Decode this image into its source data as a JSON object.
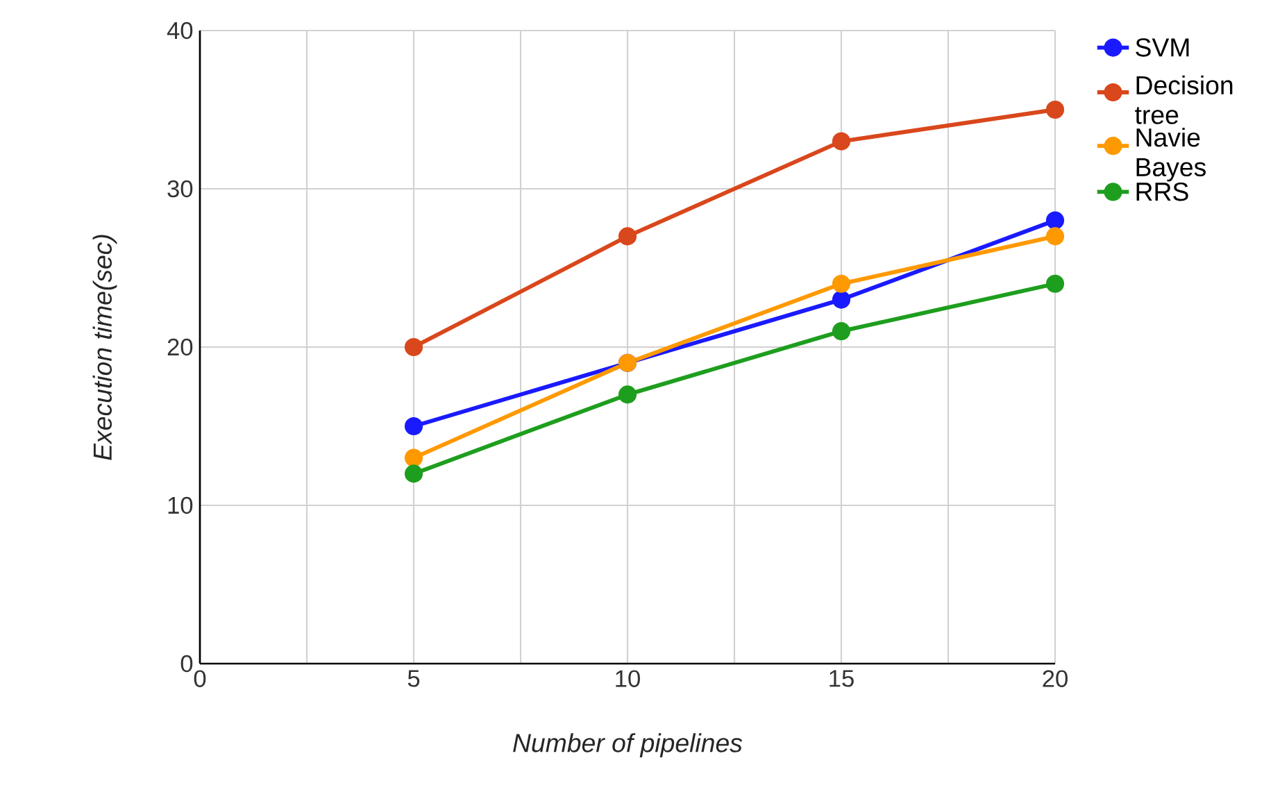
{
  "chart_data": {
    "type": "line",
    "xlabel": "Number of pipelines",
    "ylabel": "Execution time(sec)",
    "x": [
      5,
      10,
      15,
      20
    ],
    "series": [
      {
        "name": "SVM",
        "color": "#1a1aff",
        "values": [
          15,
          19,
          23,
          28
        ]
      },
      {
        "name": "Decision tree",
        "color": "#d9471c",
        "values": [
          20,
          27,
          33,
          35
        ]
      },
      {
        "name": "Navie Bayes",
        "color": "#ff9900",
        "values": [
          13,
          19,
          24,
          27
        ]
      },
      {
        "name": "RRS",
        "color": "#1e9e1e",
        "values": [
          12,
          17,
          21,
          24
        ]
      }
    ],
    "xlim": [
      0,
      20
    ],
    "ylim": [
      0,
      40
    ],
    "xticks": [
      0,
      5,
      10,
      15,
      20
    ],
    "yticks": [
      0,
      10,
      20,
      30,
      40
    ],
    "grid": true,
    "legend": "right",
    "marker": "circle",
    "line_style": "solid"
  }
}
